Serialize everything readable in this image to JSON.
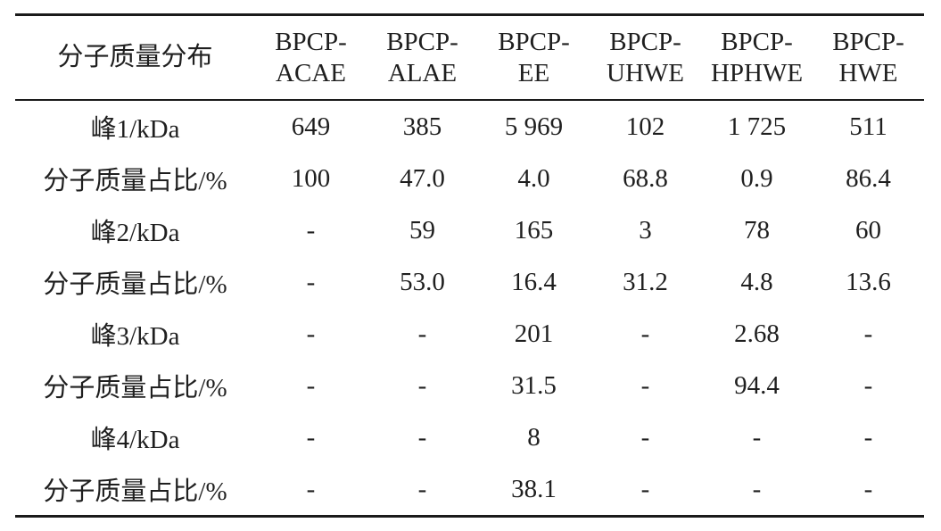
{
  "page": {
    "background": "#ffffff",
    "text_color": "#1f1f1f",
    "rule_color": "#1a1a1a"
  },
  "table": {
    "header": [
      "分子质量分布",
      "BPCP-ACAE",
      "BPCP-ALAE",
      "BPCP-EE",
      "BPCP-UHWE",
      "BPCP-HPHWE",
      "BPCP-HWE"
    ],
    "rows": [
      {
        "label": "峰1/kDa",
        "values": [
          "649",
          "385",
          "5 969",
          "102",
          "1 725",
          "511"
        ]
      },
      {
        "label": "分子质量占比/%",
        "values": [
          "100",
          "47.0",
          "4.0",
          "68.8",
          "0.9",
          "86.4"
        ]
      },
      {
        "label": "峰2/kDa",
        "values": [
          "-",
          "59",
          "165",
          "3",
          "78",
          "60"
        ]
      },
      {
        "label": "分子质量占比/%",
        "values": [
          "-",
          "53.0",
          "16.4",
          "31.2",
          "4.8",
          "13.6"
        ]
      },
      {
        "label": "峰3/kDa",
        "values": [
          "-",
          "-",
          "201",
          "-",
          "2.68",
          "-"
        ]
      },
      {
        "label": "分子质量占比/%",
        "values": [
          "-",
          "-",
          "31.5",
          "-",
          "94.4",
          "-"
        ]
      },
      {
        "label": "峰4/kDa",
        "values": [
          "-",
          "-",
          "8",
          "-",
          "-",
          "-"
        ]
      },
      {
        "label": "分子质量占比/%",
        "values": [
          "-",
          "-",
          "38.1",
          "-",
          "-",
          "-"
        ]
      }
    ]
  },
  "chart_data": {
    "type": "table",
    "title": "分子质量分布",
    "columns": [
      "分子质量分布",
      "BPCP-ACAE",
      "BPCP-ALAE",
      "BPCP-EE",
      "BPCP-UHWE",
      "BPCP-HPHWE",
      "BPCP-HWE"
    ],
    "rows": [
      [
        "峰1/kDa",
        "649",
        "385",
        "5 969",
        "102",
        "1 725",
        "511"
      ],
      [
        "分子质量占比/%",
        "100",
        "47.0",
        "4.0",
        "68.8",
        "0.9",
        "86.4"
      ],
      [
        "峰2/kDa",
        "-",
        "59",
        "165",
        "3",
        "78",
        "60"
      ],
      [
        "分子质量占比/%",
        "-",
        "53.0",
        "16.4",
        "31.2",
        "4.8",
        "13.6"
      ],
      [
        "峰3/kDa",
        "-",
        "-",
        "201",
        "-",
        "2.68",
        "-"
      ],
      [
        "分子质量占比/%",
        "-",
        "-",
        "31.5",
        "-",
        "94.4",
        "-"
      ],
      [
        "峰4/kDa",
        "-",
        "-",
        "8",
        "-",
        "-",
        "-"
      ],
      [
        "分子质量占比/%",
        "-",
        "-",
        "38.1",
        "-",
        "-",
        "-"
      ]
    ]
  }
}
